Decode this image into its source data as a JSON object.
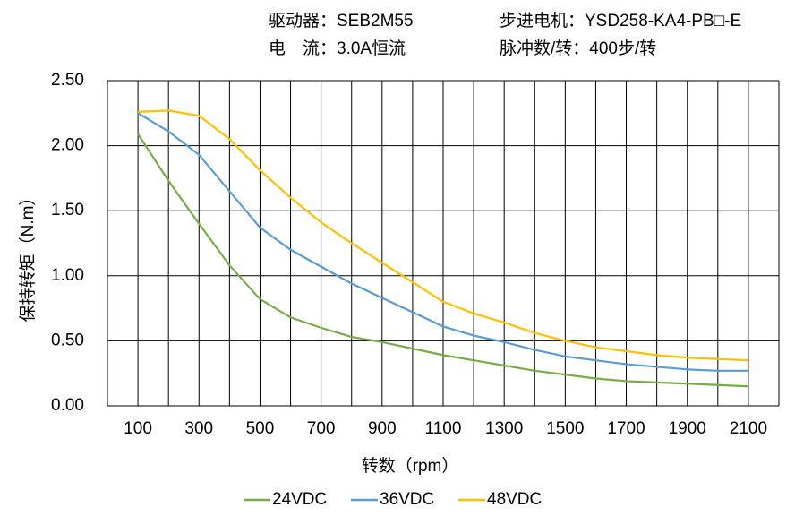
{
  "header": {
    "driver": "驱动器：SEB2M55",
    "current": "电　流：3.0A恒流",
    "motor": "步进电机：YSD258-KA4-PB□-E",
    "pulses": "脉冲数/转：400步/转"
  },
  "chart_data": {
    "type": "line",
    "y_label": "保持转矩（N.m）",
    "x_label": "转数（rpm）",
    "x": [
      100,
      200,
      300,
      400,
      500,
      600,
      700,
      800,
      900,
      1000,
      1100,
      1200,
      1300,
      1400,
      1500,
      1600,
      1700,
      1800,
      1900,
      2000,
      2100
    ],
    "series": [
      {
        "name": "24VDC",
        "color": "#77ac47",
        "values": [
          2.09,
          1.73,
          1.4,
          1.08,
          0.82,
          0.68,
          0.6,
          0.53,
          0.49,
          0.44,
          0.39,
          0.35,
          0.31,
          0.27,
          0.24,
          0.21,
          0.19,
          0.18,
          0.17,
          0.16,
          0.15
        ]
      },
      {
        "name": "36VDC",
        "color": "#5b9bd5",
        "values": [
          2.25,
          2.11,
          1.93,
          1.65,
          1.37,
          1.2,
          1.07,
          0.94,
          0.83,
          0.72,
          0.61,
          0.54,
          0.49,
          0.43,
          0.38,
          0.35,
          0.32,
          0.3,
          0.28,
          0.27,
          0.27
        ]
      },
      {
        "name": "48VDC",
        "color": "#ffc000",
        "values": [
          2.26,
          2.27,
          2.23,
          2.05,
          1.81,
          1.6,
          1.41,
          1.25,
          1.1,
          0.95,
          0.8,
          0.71,
          0.64,
          0.56,
          0.5,
          0.45,
          0.42,
          0.39,
          0.37,
          0.36,
          0.35
        ]
      }
    ],
    "xlim": [
      0,
      2200
    ],
    "xticks": [
      100,
      300,
      500,
      700,
      900,
      1100,
      1300,
      1500,
      1700,
      1900,
      2100
    ],
    "xgrid": [
      0,
      100,
      200,
      300,
      400,
      500,
      600,
      700,
      800,
      900,
      1000,
      1100,
      1200,
      1300,
      1400,
      1500,
      1600,
      1700,
      1800,
      1900,
      2000,
      2100,
      2200
    ],
    "ylim": [
      0,
      2.5
    ],
    "yticks": [
      {
        "value": 0,
        "label": "0.00"
      },
      {
        "value": 0.5,
        "label": "0.50"
      },
      {
        "value": 1,
        "label": "1.00"
      },
      {
        "value": 1.5,
        "label": "1.50"
      },
      {
        "value": 2,
        "label": "2.00"
      },
      {
        "value": 2.5,
        "label": "2.50"
      }
    ],
    "grid": true
  }
}
